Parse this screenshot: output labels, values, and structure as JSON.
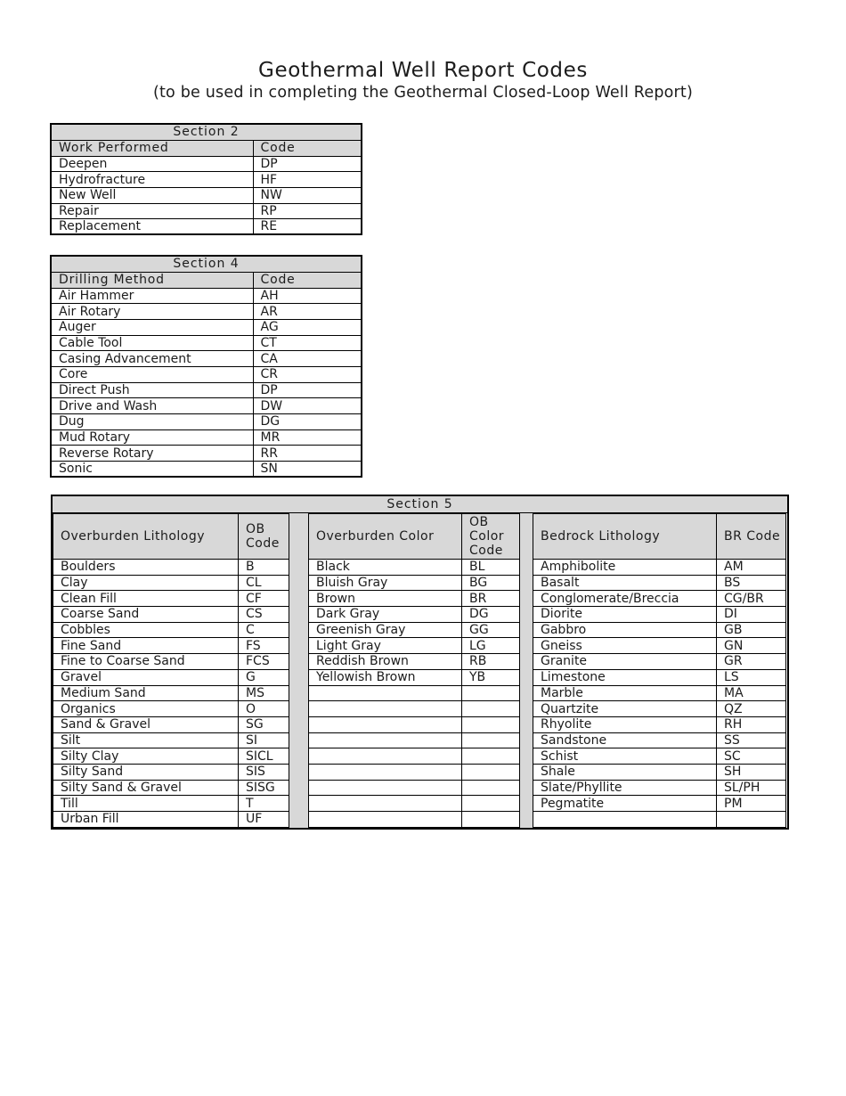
{
  "title": "Geothermal Well Report Codes",
  "subtitle": "(to be used in completing the Geothermal Closed-Loop Well Report)",
  "colors": {
    "header_fill": "#d8d8d8",
    "border": "#000000",
    "text": "#1c1c1c",
    "page_bg": "#ffffff"
  },
  "section2": {
    "title": "Section 2",
    "headers": [
      "Work Performed",
      "Code"
    ],
    "total_rows": 5,
    "rows": [
      [
        "Deepen",
        "DP"
      ],
      [
        "Hydrofracture",
        "HF"
      ],
      [
        "New Well",
        "NW"
      ],
      [
        "Repair",
        "RP"
      ],
      [
        "Replacement",
        "RE"
      ]
    ]
  },
  "section4": {
    "title": "Section 4",
    "headers": [
      "Drilling Method",
      "Code"
    ],
    "total_rows": 12,
    "rows": [
      [
        "Air Hammer",
        "AH"
      ],
      [
        "Air Rotary",
        "AR"
      ],
      [
        "Auger",
        "AG"
      ],
      [
        "Cable Tool",
        "CT"
      ],
      [
        "Casing Advancement",
        "CA"
      ],
      [
        "Core",
        "CR"
      ],
      [
        "Direct Push",
        "DP"
      ],
      [
        "Drive and Wash",
        "DW"
      ],
      [
        "Dug",
        "DG"
      ],
      [
        "Mud Rotary",
        "MR"
      ],
      [
        "Reverse Rotary",
        "RR"
      ],
      [
        "Sonic",
        "SN"
      ]
    ]
  },
  "section5": {
    "title": "Section 5",
    "subtables": [
      {
        "name_header": "Overburden Lithology",
        "code_header": "OB Code",
        "total_rows": 17,
        "rows": [
          [
            "Boulders",
            "B"
          ],
          [
            "Clay",
            "CL"
          ],
          [
            "Clean Fill",
            "CF"
          ],
          [
            "Coarse Sand",
            "CS"
          ],
          [
            "Cobbles",
            "C"
          ],
          [
            "Fine Sand",
            "FS"
          ],
          [
            "Fine to Coarse Sand",
            "FCS"
          ],
          [
            "Gravel",
            "G"
          ],
          [
            "Medium Sand",
            "MS"
          ],
          [
            "Organics",
            "O"
          ],
          [
            "Sand & Gravel",
            "SG"
          ],
          [
            "Silt",
            "SI"
          ],
          [
            "Silty Clay",
            "SICL"
          ],
          [
            "Silty Sand",
            "SIS"
          ],
          [
            "Silty Sand & Gravel",
            "SISG"
          ],
          [
            "Till",
            "T"
          ],
          [
            "Urban Fill",
            "UF"
          ]
        ]
      },
      {
        "name_header": "Overburden Color",
        "code_header": "OB Color Code",
        "total_rows": 17,
        "rows": [
          [
            "Black",
            "BL"
          ],
          [
            "Bluish Gray",
            "BG"
          ],
          [
            "Brown",
            "BR"
          ],
          [
            "Dark Gray",
            "DG"
          ],
          [
            "Greenish Gray",
            "GG"
          ],
          [
            "Light Gray",
            "LG"
          ],
          [
            "Reddish Brown",
            "RB"
          ],
          [
            "Yellowish Brown",
            "YB"
          ]
        ]
      },
      {
        "name_header": "Bedrock Lithology",
        "code_header": "BR Code",
        "total_rows": 17,
        "rows": [
          [
            "Amphibolite",
            "AM"
          ],
          [
            "Basalt",
            "BS"
          ],
          [
            "Conglomerate/Breccia",
            "CG/BR"
          ],
          [
            "Diorite",
            "DI"
          ],
          [
            "Gabbro",
            "GB"
          ],
          [
            "Gneiss",
            "GN"
          ],
          [
            "Granite",
            "GR"
          ],
          [
            "Limestone",
            "LS"
          ],
          [
            "Marble",
            "MA"
          ],
          [
            "Quartzite",
            "QZ"
          ],
          [
            "Rhyolite",
            "RH"
          ],
          [
            "Sandstone",
            "SS"
          ],
          [
            "Schist",
            "SC"
          ],
          [
            "Shale",
            "SH"
          ],
          [
            "Slate/Phyllite",
            "SL/PH"
          ],
          [
            "Pegmatite",
            "PM"
          ]
        ]
      }
    ]
  }
}
